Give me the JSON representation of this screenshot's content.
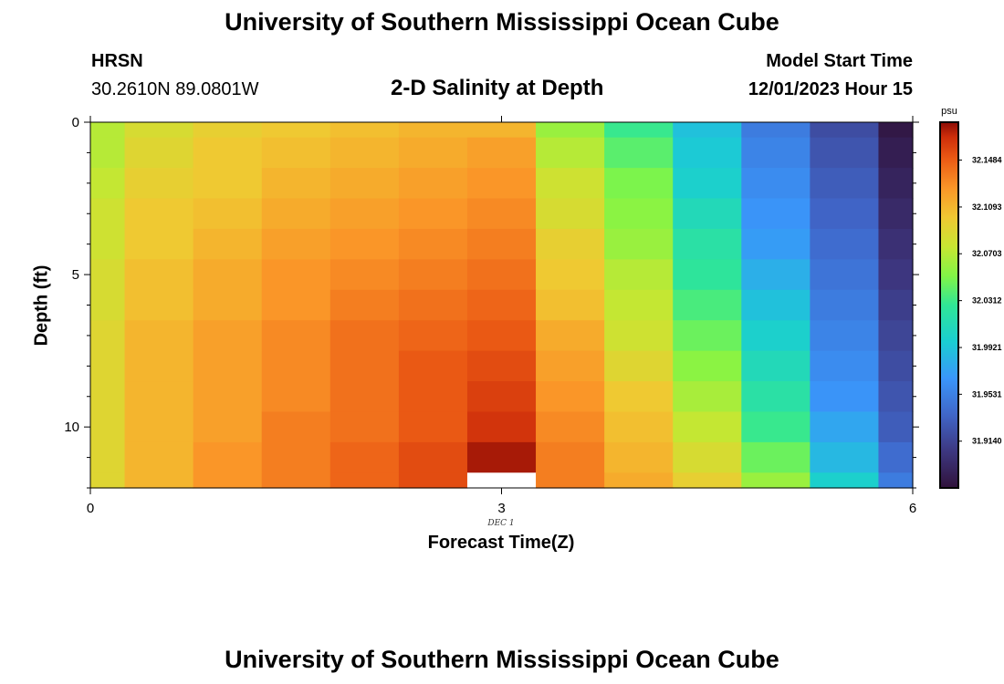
{
  "header": {
    "title": "University of Southern Mississippi Ocean Cube",
    "station": "HRSN",
    "coordinates": "30.2610N  89.0801W",
    "subtitle": "2-D Salinity at Depth",
    "model_start_label": "Model Start Time",
    "model_start_value": "12/01/2023 Hour 15"
  },
  "footer": {
    "title": "University of Southern Mississippi Ocean Cube"
  },
  "chart_data": {
    "type": "heatmap",
    "title": "2-D Salinity at Depth",
    "xlabel": "Forecast Time(Z)",
    "ylabel": "Depth (ft)",
    "x_date_label": "DEC 1",
    "xlim": [
      0,
      6
    ],
    "ylim": [
      0,
      12
    ],
    "y_inverted": true,
    "x_ticks": [
      "0",
      "3",
      "6"
    ],
    "y_ticks": [
      "0",
      "5",
      "10"
    ],
    "colorbar": {
      "unit": "psu",
      "range": [
        31.875,
        32.18
      ],
      "ticks": [
        "32.1484",
        "32.1093",
        "32.0703",
        "32.0312",
        "31.9921",
        "31.9531",
        "31.9140"
      ]
    },
    "column_edges": [
      0,
      0.25,
      0.75,
      1.25,
      1.75,
      2.25,
      2.75,
      3.25,
      3.75,
      4.25,
      4.75,
      5.25,
      5.75,
      6
    ],
    "row_edges": [
      0,
      0.5,
      1.5,
      2.5,
      3.5,
      4.5,
      5.5,
      6.5,
      7.5,
      8.5,
      9.5,
      10.5,
      11.5,
      12
    ],
    "salinity_psu": [
      [
        32.07,
        32.085,
        32.095,
        32.1,
        32.105,
        32.11,
        32.11,
        32.06,
        32.03,
        31.99,
        31.95,
        31.92,
        31.88
      ],
      [
        32.07,
        32.09,
        32.1,
        32.105,
        32.11,
        32.115,
        32.12,
        32.07,
        32.04,
        31.995,
        31.955,
        31.925,
        31.885
      ],
      [
        32.075,
        32.095,
        32.1,
        32.11,
        32.115,
        32.12,
        32.125,
        32.08,
        32.05,
        32.0,
        31.96,
        31.93,
        31.89
      ],
      [
        32.08,
        32.1,
        32.105,
        32.115,
        32.12,
        32.125,
        32.13,
        32.085,
        32.055,
        32.01,
        31.965,
        31.935,
        31.895
      ],
      [
        32.08,
        32.1,
        32.11,
        32.12,
        32.125,
        32.13,
        32.135,
        32.095,
        32.06,
        32.02,
        31.97,
        31.94,
        31.9
      ],
      [
        32.085,
        32.105,
        32.115,
        32.125,
        32.13,
        32.135,
        32.14,
        32.1,
        32.07,
        32.025,
        31.98,
        31.945,
        31.905
      ],
      [
        32.085,
        32.105,
        32.115,
        32.125,
        32.135,
        32.14,
        32.145,
        32.105,
        32.075,
        32.035,
        31.99,
        31.95,
        31.91
      ],
      [
        32.09,
        32.11,
        32.12,
        32.13,
        32.14,
        32.145,
        32.15,
        32.115,
        32.08,
        32.045,
        32.0,
        31.955,
        31.915
      ],
      [
        32.09,
        32.11,
        32.12,
        32.13,
        32.14,
        32.15,
        32.155,
        32.12,
        32.09,
        32.055,
        32.01,
        31.96,
        31.92
      ],
      [
        32.09,
        32.11,
        32.12,
        32.13,
        32.14,
        32.15,
        32.16,
        32.125,
        32.1,
        32.065,
        32.02,
        31.965,
        31.925
      ],
      [
        32.09,
        32.11,
        32.12,
        32.135,
        32.14,
        32.15,
        32.165,
        32.13,
        32.105,
        32.075,
        32.03,
        31.975,
        31.93
      ],
      [
        32.09,
        32.11,
        32.125,
        32.135,
        32.145,
        32.155,
        32.175,
        32.135,
        32.11,
        32.085,
        32.045,
        31.985,
        31.94
      ],
      [
        32.09,
        32.11,
        32.125,
        32.135,
        32.145,
        32.155,
        null,
        32.135,
        32.115,
        32.095,
        32.06,
        32.0,
        31.95
      ]
    ]
  }
}
